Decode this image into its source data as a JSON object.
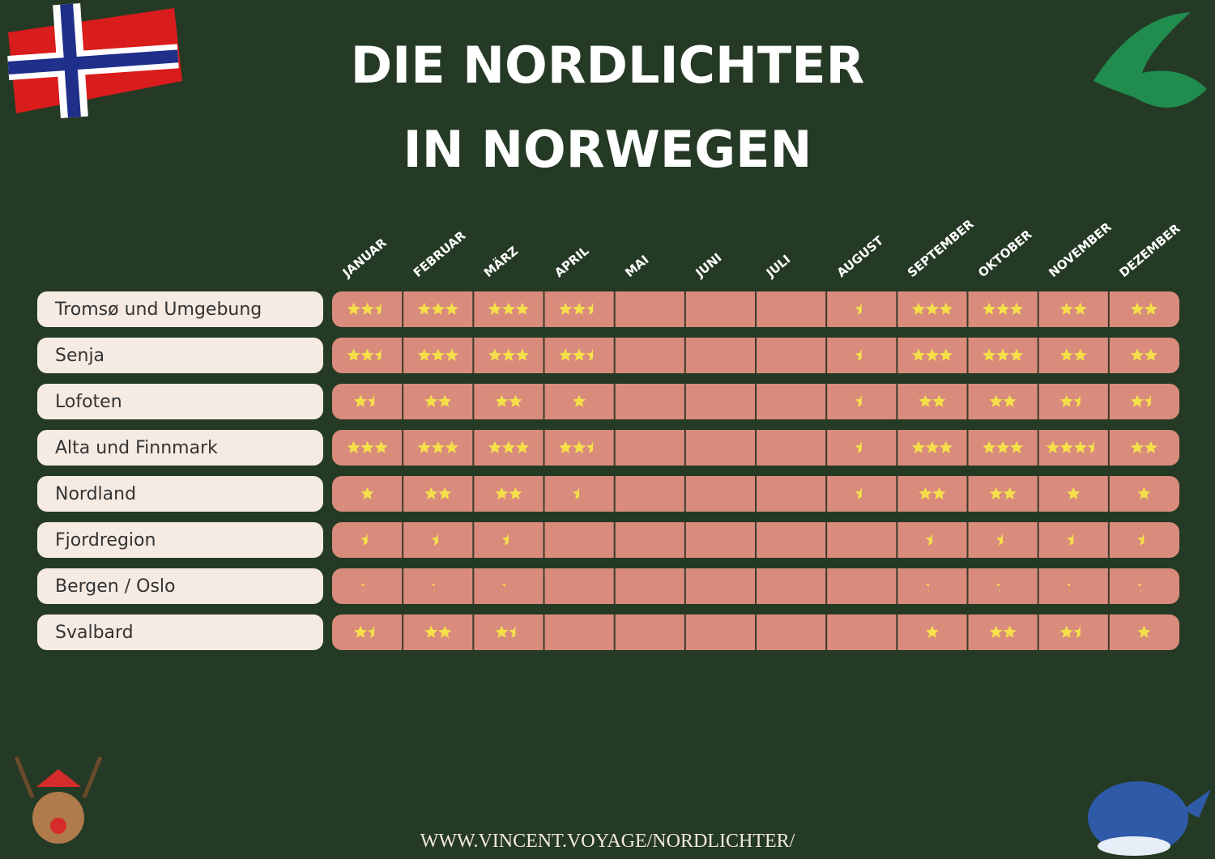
{
  "title": [
    "DIE NORDLICHTER",
    "IN NORWEGEN"
  ],
  "months": [
    "JANUAR",
    "FEBRUAR",
    "MÄRZ",
    "APRIL",
    "MAI",
    "JUNI",
    "JULI",
    "AUGUST",
    "SEPTEMBER",
    "OKTOBER",
    "NOVEMBER",
    "DEZEMBER"
  ],
  "rows": [
    {
      "name": "Tromsø und Umgebung",
      "ratings": [
        2.5,
        3,
        3,
        2.5,
        null,
        null,
        null,
        0.5,
        3,
        3,
        2,
        2
      ]
    },
    {
      "name": "Senja",
      "ratings": [
        2.5,
        3,
        3,
        2.5,
        null,
        null,
        null,
        0.5,
        3,
        3,
        2,
        2
      ]
    },
    {
      "name": "Lofoten",
      "ratings": [
        1.5,
        2,
        2,
        1,
        null,
        null,
        null,
        0.5,
        2,
        2,
        1.5,
        1.5
      ]
    },
    {
      "name": "Alta und Finnmark",
      "ratings": [
        3,
        3,
        3,
        2.5,
        null,
        null,
        null,
        0.5,
        3,
        3,
        3.5,
        2
      ]
    },
    {
      "name": "Nordland",
      "ratings": [
        1,
        2,
        2,
        0.5,
        null,
        null,
        null,
        0.5,
        2,
        2,
        1,
        1
      ]
    },
    {
      "name": "Fjordregion",
      "ratings": [
        0.5,
        0.5,
        0.5,
        null,
        null,
        null,
        null,
        null,
        0.5,
        0.5,
        0.5,
        0.5
      ]
    },
    {
      "name": "Bergen / Oslo",
      "ratings": [
        0.25,
        0.25,
        0.25,
        null,
        null,
        null,
        null,
        null,
        0.25,
        0.25,
        0.25,
        0.25
      ]
    },
    {
      "name": "Svalbard",
      "ratings": [
        1.5,
        2,
        1.5,
        null,
        null,
        null,
        null,
        null,
        1,
        2,
        1.5,
        1
      ]
    }
  ],
  "footer": "WWW.VINCENT.VOYAGE/NORDLICHTER/"
}
